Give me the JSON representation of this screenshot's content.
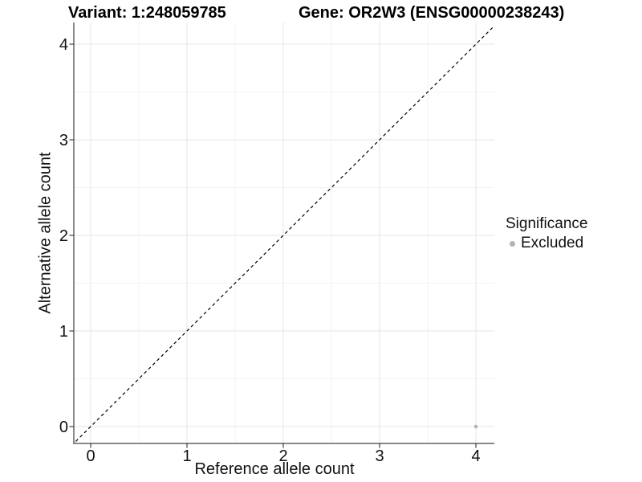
{
  "header": {
    "variant_title": "Variant: 1:248059785",
    "gene_title": "Gene: OR2W3 (ENSG00000238243)"
  },
  "chart_data": {
    "type": "scatter",
    "xlabel": "Reference allele count",
    "ylabel": "Alternative allele count",
    "xlim": [
      -0.2,
      4.2
    ],
    "ylim": [
      -0.2,
      4.2
    ],
    "xticks": [
      0,
      1,
      2,
      3,
      4
    ],
    "yticks": [
      0,
      1,
      2,
      3,
      4
    ],
    "minor_gridlines_x": [
      0.5,
      1.5,
      2.5,
      3.5
    ],
    "minor_gridlines_y": [
      0.5,
      1.5,
      2.5,
      3.5
    ],
    "grid": "on",
    "reference_line": {
      "type": "identity",
      "style": "dashed",
      "color": "#000000",
      "from": [
        -0.2,
        -0.2
      ],
      "to": [
        4.4,
        4.4
      ]
    },
    "series": [
      {
        "name": "Excluded",
        "color": "#b4b4b4",
        "points": [
          [
            4,
            0
          ]
        ]
      }
    ],
    "legend": {
      "title": "Significance",
      "position": "right",
      "items": [
        {
          "label": "Excluded",
          "color": "#b4b4b4"
        }
      ]
    }
  },
  "colors": {
    "background": "#ffffff",
    "grid_major": "#e6e6e6",
    "grid_minor": "#f3f3f3",
    "axis_line": "#404040",
    "tick_text": "#111111",
    "point": "#b4b4b4"
  }
}
